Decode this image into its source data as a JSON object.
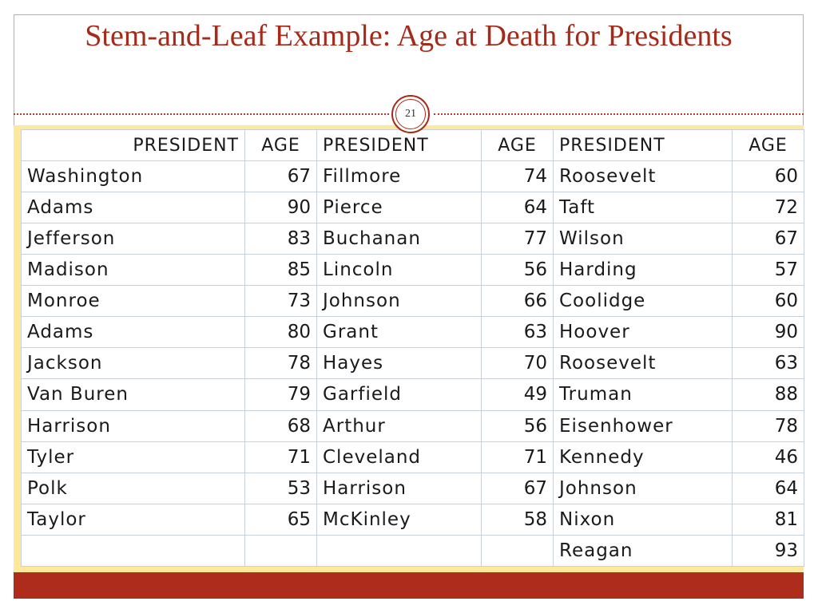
{
  "slide": {
    "title": "Stem-and-Leaf Example:  Age at Death for Presidents",
    "number": "21"
  },
  "table": {
    "headers": [
      "PRESIDENT",
      "AGE",
      "PRESIDENT",
      "AGE",
      "PRESIDENT",
      "AGE"
    ],
    "rows": [
      [
        "Washington",
        "67",
        "Fillmore",
        "74",
        "Roosevelt",
        "60"
      ],
      [
        "Adams",
        "90",
        "Pierce",
        "64",
        "Taft",
        "72"
      ],
      [
        "Jefferson",
        "83",
        "Buchanan",
        "77",
        "Wilson",
        "67"
      ],
      [
        "Madison",
        "85",
        "Lincoln",
        "56",
        "Harding",
        "57"
      ],
      [
        "Monroe",
        "73",
        "Johnson",
        "66",
        "Coolidge",
        "60"
      ],
      [
        "Adams",
        "80",
        "Grant",
        "63",
        "Hoover",
        "90"
      ],
      [
        "Jackson",
        "78",
        "Hayes",
        "70",
        "Roosevelt",
        "63"
      ],
      [
        "Van Buren",
        "79",
        "Garfield",
        "49",
        "Truman",
        "88"
      ],
      [
        "Harrison",
        "68",
        "Arthur",
        "56",
        "Eisenhower",
        "78"
      ],
      [
        "Tyler",
        "71",
        "Cleveland",
        "71",
        "Kennedy",
        "46"
      ],
      [
        "Polk",
        "53",
        "Harrison",
        "67",
        "Johnson",
        "64"
      ],
      [
        "Taylor",
        "65",
        "McKinley",
        "58",
        "Nixon",
        "81"
      ],
      [
        "",
        "",
        "",
        "",
        "Reagan",
        "93"
      ]
    ]
  },
  "colors": {
    "accent": "#a52a1a",
    "band": "#fde89b",
    "footer": "#ad2c1b"
  }
}
